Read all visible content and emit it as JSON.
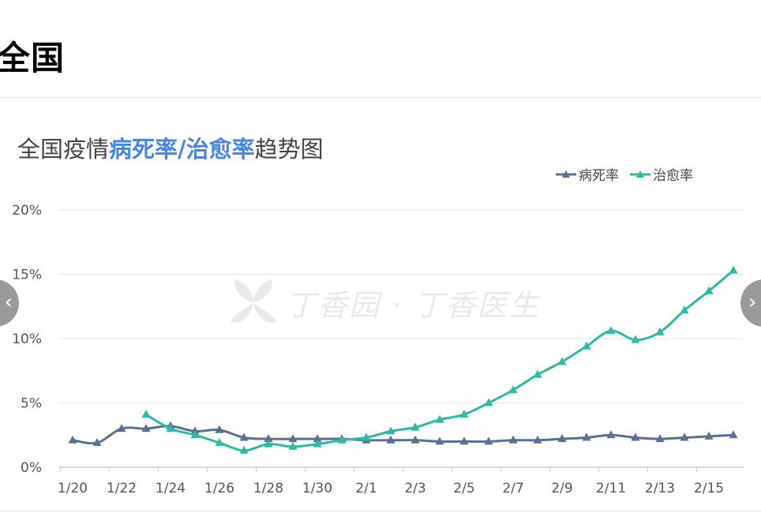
{
  "page": {
    "heading": "全国"
  },
  "title": {
    "pre": "全国疫情",
    "hl1": "病死率",
    "sep": "/",
    "hl2": "治愈率",
    "post": "趋势图"
  },
  "watermark": "丁香园 · 丁香医生",
  "colors": {
    "mortality": "#5b6e94",
    "recovery": "#2fb8a4",
    "grid": "#e5e5e5",
    "title_highlight": "#4a86e0"
  },
  "icons": {
    "prev": "chevron-left-icon",
    "next": "chevron-right-icon"
  },
  "chart_data": {
    "type": "line",
    "y_format": "percent",
    "ylim": [
      0,
      20
    ],
    "yticks": [
      "0%",
      "5%",
      "10%",
      "15%",
      "20%"
    ],
    "x": [
      "1/20",
      "1/21",
      "1/22",
      "1/23",
      "1/24",
      "1/25",
      "1/26",
      "1/27",
      "1/28",
      "1/29",
      "1/30",
      "1/31",
      "2/1",
      "2/2",
      "2/3",
      "2/4",
      "2/5",
      "2/6",
      "2/7",
      "2/8",
      "2/9",
      "2/10",
      "2/11",
      "2/12",
      "2/13",
      "2/14",
      "2/15",
      "2/16"
    ],
    "xticks": [
      "1/20",
      "1/22",
      "1/24",
      "1/26",
      "1/28",
      "1/30",
      "2/1",
      "2/3",
      "2/5",
      "2/7",
      "2/9",
      "2/11",
      "2/13",
      "2/15"
    ],
    "legend_position": "top-right",
    "grid": true,
    "series": [
      {
        "name": "病死率",
        "color": "#5b6e94",
        "values": [
          2.1,
          1.9,
          3.0,
          3.0,
          3.2,
          2.8,
          2.9,
          2.3,
          2.2,
          2.2,
          2.2,
          2.2,
          2.1,
          2.1,
          2.1,
          2.0,
          2.0,
          2.0,
          2.1,
          2.1,
          2.2,
          2.3,
          2.5,
          2.3,
          2.2,
          2.3,
          2.4,
          2.5
        ]
      },
      {
        "name": "治愈率",
        "color": "#2fb8a4",
        "values": [
          null,
          null,
          null,
          4.1,
          3.0,
          2.5,
          1.9,
          1.3,
          1.8,
          1.6,
          1.8,
          2.1,
          2.3,
          2.8,
          3.1,
          3.7,
          4.1,
          5.0,
          6.0,
          7.2,
          8.2,
          9.4,
          10.6,
          9.9,
          10.5,
          12.2,
          13.7,
          15.3
        ]
      }
    ]
  }
}
